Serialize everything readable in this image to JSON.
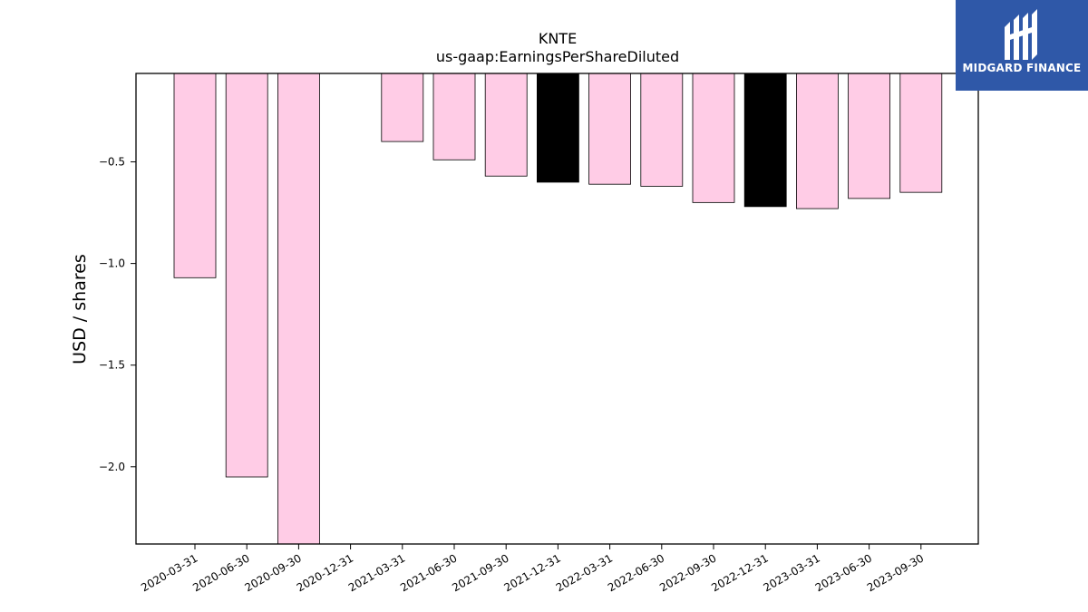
{
  "logo": {
    "brand_text": "MIDGARD FINANCE",
    "bg_color": "#2f58a8",
    "icon": "midgard-logo-icon"
  },
  "chart_data": {
    "type": "bar",
    "title": "KNTE",
    "subtitle": "us-gaap:EarningsPerShareDiluted",
    "xlabel": "",
    "ylabel": "USD / shares",
    "ylim": [
      -2.38,
      -0.065
    ],
    "yticks": [
      -2.0,
      -1.5,
      -1.0,
      -0.5
    ],
    "ytick_labels": [
      "−2.0",
      "−1.5",
      "−1.0",
      "−0.5"
    ],
    "grid": false,
    "categories": [
      "2020-03-31",
      "2020-06-30",
      "2020-09-30",
      "2020-12-31",
      "2021-03-31",
      "2021-06-30",
      "2021-09-30",
      "2021-12-31",
      "2022-03-31",
      "2022-06-30",
      "2022-09-30",
      "2022-12-31",
      "2023-03-31",
      "2023-06-30",
      "2023-09-30"
    ],
    "values": [
      -1.07,
      -2.05,
      -2.4,
      null,
      -0.4,
      -0.49,
      -0.57,
      -0.6,
      -0.61,
      -0.62,
      -0.7,
      -0.72,
      -0.73,
      -0.68,
      -0.65
    ],
    "highlight": [
      false,
      false,
      false,
      false,
      false,
      false,
      false,
      true,
      false,
      false,
      false,
      true,
      false,
      false,
      false
    ],
    "colors": {
      "bar": "#ffcce6",
      "highlight": "#000000",
      "edge": "#000000"
    }
  }
}
